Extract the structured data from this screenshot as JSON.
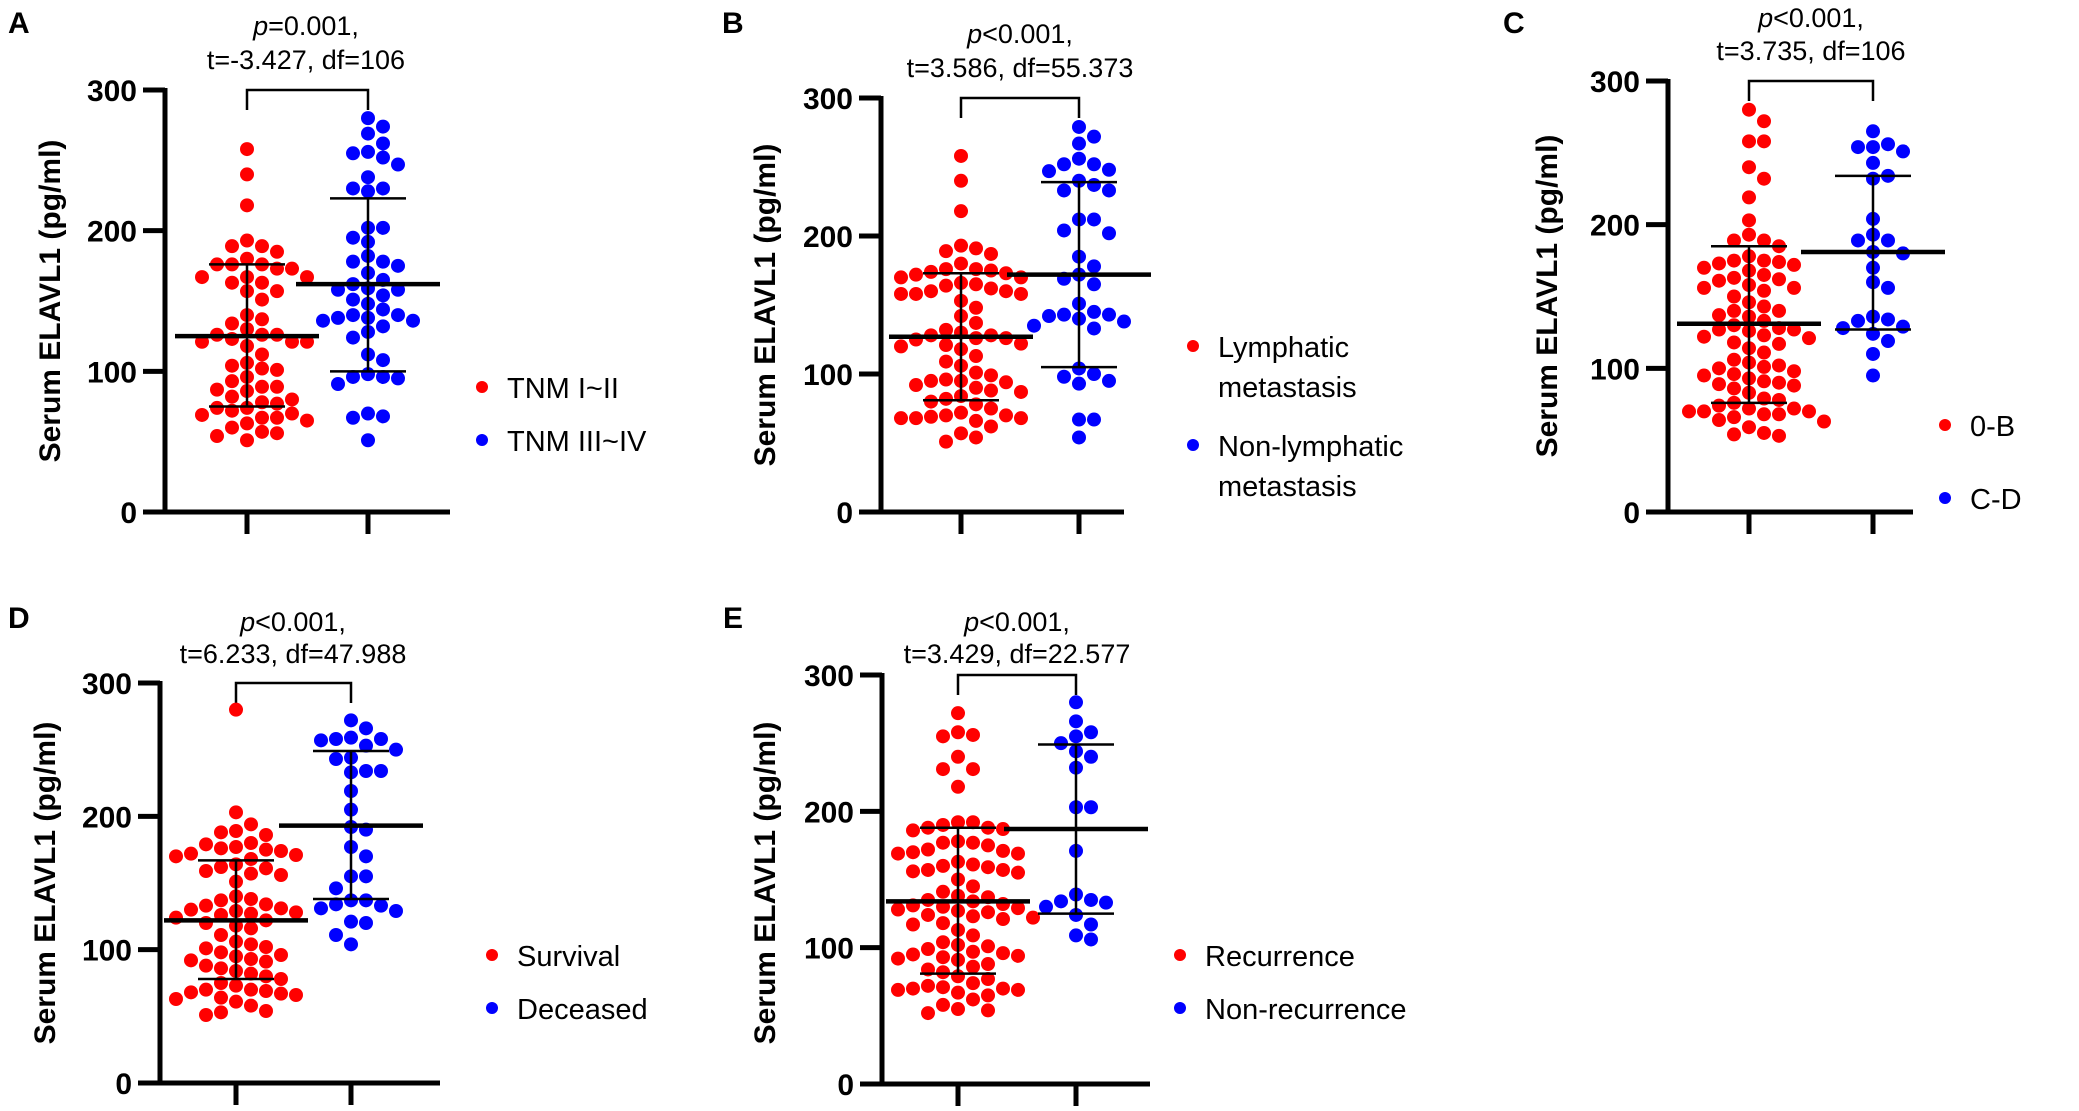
{
  "figure": {
    "colors": {
      "group1": "#ff0000",
      "group2": "#0000ff",
      "axis": "#000000"
    }
  },
  "chart_data": [
    {
      "panel": "A",
      "type": "scatter",
      "subtype": "dot-plot-mean-sd",
      "stat_line1_p": "p",
      "stat_line1_rest": "=0.001,",
      "stat_line2": "t=-3.427, df=106",
      "ylabel": "Serum ELAVL1 (pg/ml)",
      "ylim": [
        0,
        300
      ],
      "yticks": [
        "0",
        "100",
        "200",
        "300"
      ],
      "legend": [
        "TNM I~II",
        "TNM III~IV"
      ],
      "legend_placement": "right",
      "series": [
        {
          "name": "TNM I~II",
          "mean": 125,
          "sd_upper": 176,
          "sd_lower": 75,
          "values": [
            258,
            240,
            218,
            193,
            189,
            189,
            185,
            180,
            176,
            176,
            176,
            173,
            173,
            167,
            167,
            167,
            163,
            163,
            157,
            157,
            151,
            140,
            137,
            134,
            130,
            126,
            126,
            126,
            123,
            121,
            121,
            121,
            118,
            112,
            106,
            104,
            102,
            101,
            96,
            93,
            89,
            89,
            87,
            86,
            82,
            80,
            78,
            77,
            74,
            74,
            72,
            70,
            69,
            67,
            67,
            65,
            63,
            60,
            57,
            56,
            54,
            51
          ]
        },
        {
          "name": "TNM III~IV",
          "mean": 162,
          "sd_upper": 223,
          "sd_lower": 100,
          "values": [
            280,
            274,
            269,
            262,
            256,
            255,
            252,
            247,
            238,
            230,
            230,
            228,
            202,
            202,
            195,
            192,
            182,
            178,
            178,
            175,
            170,
            165,
            162,
            159,
            158,
            158,
            154,
            151,
            148,
            144,
            140,
            140,
            138,
            138,
            136,
            136,
            132,
            128,
            124,
            112,
            108,
            98,
            96,
            96,
            95,
            91,
            70,
            68,
            67,
            51
          ]
        }
      ]
    },
    {
      "panel": "B",
      "type": "scatter",
      "subtype": "dot-plot-mean-sd",
      "stat_line1_p": "p",
      "stat_line1_rest": "<0.001,",
      "stat_line2": "t=3.586, df=55.373",
      "ylabel": "Serum ELAVL1 (pg/ml)",
      "ylim": [
        0,
        300
      ],
      "yticks": [
        "0",
        "100",
        "200",
        "300"
      ],
      "legend": [
        "Lymphatic metastasis",
        "Non-lymphatic metastasis"
      ],
      "legend_lines": [
        [
          "Lymphatic",
          "metastasis"
        ],
        [
          "Non-lymphatic",
          "metastasis"
        ]
      ],
      "legend_placement": "right",
      "series": [
        {
          "name": "Lymphatic metastasis",
          "mean": 127,
          "sd_upper": 173,
          "sd_lower": 81,
          "values": [
            258,
            240,
            218,
            193,
            191,
            189,
            187,
            180,
            176,
            176,
            175,
            174,
            173,
            172,
            170,
            170,
            166,
            165,
            164,
            162,
            160,
            160,
            158,
            158,
            158,
            153,
            148,
            142,
            137,
            132,
            130,
            128,
            128,
            126,
            126,
            125,
            122,
            121,
            120,
            118,
            113,
            109,
            106,
            101,
            99,
            96,
            95,
            95,
            94,
            92,
            90,
            88,
            87,
            84,
            82,
            80,
            78,
            75,
            72,
            70,
            70,
            69,
            68,
            68,
            68,
            66,
            62,
            57,
            54,
            51
          ]
        },
        {
          "name": "Non-lymphatic metastasis",
          "mean": 172,
          "sd_upper": 239,
          "sd_lower": 105,
          "values": [
            279,
            272,
            267,
            256,
            252,
            252,
            248,
            247,
            240,
            237,
            233,
            233,
            212,
            212,
            204,
            202,
            185,
            178,
            172,
            169,
            165,
            151,
            145,
            143,
            143,
            142,
            140,
            138,
            135,
            133,
            104,
            100,
            98,
            95,
            93,
            67,
            67,
            54
          ]
        }
      ]
    },
    {
      "panel": "C",
      "type": "scatter",
      "subtype": "dot-plot-mean-sd",
      "stat_line1_p": "p",
      "stat_line1_rest": "<0.001,",
      "stat_line2": "t=3.735, df=106",
      "ylabel": "Serum ELAVL1 (pg/ml)",
      "ylim": [
        0,
        300
      ],
      "yticks": [
        "0",
        "100",
        "200",
        "300"
      ],
      "legend": [
        "0-B",
        "C-D"
      ],
      "legend_placement": "right",
      "series": [
        {
          "name": "0-B",
          "mean": 131,
          "sd_upper": 185,
          "sd_lower": 76,
          "values": [
            280,
            272,
            258,
            258,
            240,
            232,
            219,
            203,
            193,
            189,
            189,
            185,
            178,
            175,
            175,
            174,
            173,
            172,
            170,
            168,
            165,
            163,
            162,
            161,
            158,
            156,
            156,
            154,
            150,
            146,
            143,
            140,
            140,
            137,
            136,
            133,
            130,
            128,
            127,
            127,
            126,
            123,
            122,
            121,
            118,
            117,
            114,
            111,
            106,
            104,
            102,
            101,
            100,
            98,
            96,
            95,
            93,
            91,
            90,
            89,
            88,
            86,
            83,
            79,
            78,
            76,
            74,
            72,
            72,
            70,
            70,
            70,
            68,
            68,
            66,
            64,
            63,
            59,
            55,
            54,
            53
          ]
        },
        {
          "name": "C-D",
          "mean": 181,
          "sd_upper": 234,
          "sd_lower": 127,
          "values": [
            265,
            256,
            254,
            254,
            251,
            243,
            234,
            232,
            204,
            193,
            189,
            189,
            181,
            180,
            170,
            160,
            156,
            136,
            134,
            133,
            129,
            128,
            124,
            119,
            110,
            95
          ]
        }
      ]
    },
    {
      "panel": "D",
      "type": "scatter",
      "subtype": "dot-plot-mean-sd",
      "stat_line1_p": "p",
      "stat_line1_rest": "<0.001,",
      "stat_line2": "t=6.233, df=47.988",
      "ylabel": "Serum ELAVL1 (pg/ml)",
      "ylim": [
        0,
        300
      ],
      "yticks": [
        "0",
        "100",
        "200",
        "300"
      ],
      "legend": [
        "Survival",
        "Deceased"
      ],
      "legend_placement": "right",
      "series": [
        {
          "name": "Survival",
          "mean": 122,
          "sd_upper": 167,
          "sd_lower": 78,
          "values": [
            280,
            203,
            194,
            189,
            188,
            186,
            180,
            179,
            177,
            176,
            175,
            174,
            172,
            171,
            170,
            168,
            164,
            162,
            161,
            159,
            157,
            156,
            151,
            140,
            138,
            137,
            134,
            133,
            131,
            130,
            129,
            128,
            127,
            126,
            124,
            122,
            120,
            118,
            116,
            111,
            106,
            104,
            102,
            101,
            98,
            96,
            95,
            93,
            92,
            91,
            88,
            86,
            84,
            82,
            80,
            78,
            75,
            73,
            70,
            70,
            69,
            68,
            67,
            66,
            64,
            63,
            61,
            58,
            54,
            53,
            51
          ]
        },
        {
          "name": "Deceased",
          "mean": 193,
          "sd_upper": 249,
          "sd_lower": 138,
          "values": [
            272,
            266,
            259,
            258,
            258,
            257,
            253,
            250,
            244,
            243,
            234,
            234,
            233,
            219,
            205,
            192,
            190,
            177,
            170,
            155,
            155,
            146,
            137,
            137,
            134,
            133,
            131,
            129,
            121,
            120,
            111,
            104
          ]
        }
      ]
    },
    {
      "panel": "E",
      "type": "scatter",
      "subtype": "dot-plot-mean-sd",
      "stat_line1_p": "p",
      "stat_line1_rest": "<0.001,",
      "stat_line2": "t=3.429, df=22.577",
      "ylabel": "Serum ELAVL1 (pg/ml)",
      "ylim": [
        0,
        300
      ],
      "yticks": [
        "0",
        "100",
        "200",
        "300"
      ],
      "legend": [
        "Recurrence",
        "Non-recurrence"
      ],
      "legend_placement": "right",
      "series": [
        {
          "name": "Recurrence",
          "mean": 134,
          "sd_upper": 188,
          "sd_lower": 81,
          "values": [
            272,
            258,
            256,
            255,
            240,
            231,
            231,
            218,
            192,
            192,
            190,
            188,
            188,
            187,
            186,
            178,
            177,
            177,
            175,
            172,
            171,
            170,
            169,
            169,
            163,
            161,
            160,
            159,
            157,
            157,
            156,
            155,
            150,
            145,
            141,
            138,
            137,
            135,
            134,
            132,
            131,
            130,
            129,
            128,
            127,
            126,
            124,
            123,
            122,
            121,
            118,
            117,
            113,
            109,
            104,
            102,
            101,
            99,
            97,
            96,
            95,
            94,
            93,
            92,
            91,
            88,
            86,
            84,
            82,
            79,
            77,
            74,
            72,
            71,
            70,
            70,
            69,
            69,
            67,
            65,
            62,
            58,
            55,
            54,
            52
          ]
        },
        {
          "name": "Non-recurrence",
          "mean": 187,
          "sd_upper": 249,
          "sd_lower": 125,
          "values": [
            280,
            266,
            258,
            255,
            250,
            244,
            240,
            232,
            203,
            203,
            171,
            139,
            135,
            134,
            133,
            130,
            124,
            117,
            109,
            106
          ]
        }
      ]
    }
  ]
}
